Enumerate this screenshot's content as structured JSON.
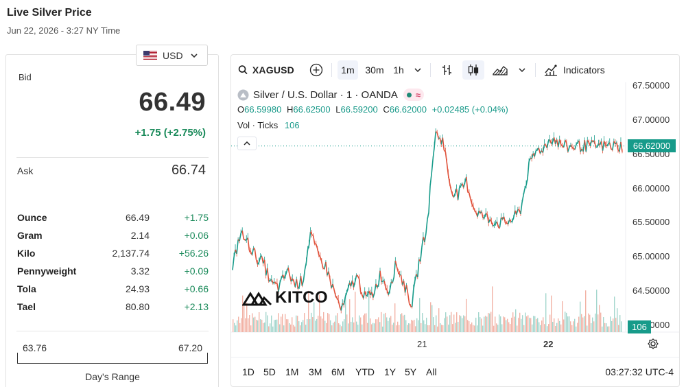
{
  "header": {
    "title": "Live Silver Price",
    "datetime": "Jun 22, 2026 - 3:27 NY Time"
  },
  "currency": {
    "selected": "USD",
    "flag_icon": "us-flag-icon"
  },
  "quote": {
    "bid_label": "Bid",
    "bid_value": "66.49",
    "bid_change": "+1.75 (+2.75%)",
    "ask_label": "Ask",
    "ask_value": "66.74",
    "positive_color": "#1a8a5a"
  },
  "units": [
    {
      "name": "Ounce",
      "price": "66.49",
      "change": "+1.75"
    },
    {
      "name": "Gram",
      "price": "2.14",
      "change": "+0.06"
    },
    {
      "name": "Kilo",
      "price": "2,137.74",
      "change": "+56.26"
    },
    {
      "name": "Pennyweight",
      "price": "3.32",
      "change": "+0.09"
    },
    {
      "name": "Tola",
      "price": "24.93",
      "change": "+0.66"
    },
    {
      "name": "Tael",
      "price": "80.80",
      "change": "+2.13"
    }
  ],
  "days_range": {
    "low": "63.76",
    "high": "67.20",
    "caption": "Day's Range"
  },
  "chart": {
    "symbol": "XAGUSD",
    "intervals": [
      "1m",
      "30m",
      "1h"
    ],
    "active_interval": "1m",
    "indicators_label": "Indicators",
    "legend": {
      "title": "Silver / U.S. Dollar · 1 · OANDA",
      "o_label": "O",
      "o_value": "66.59980",
      "h_label": "H",
      "h_value": "66.62500",
      "l_label": "L",
      "l_value": "66.59200",
      "c_label": "C",
      "c_value": "66.62000",
      "change": "+0.02485 (+0.04%)",
      "vol_label": "Vol · Ticks",
      "vol_value": "106"
    },
    "last_price_tag": "66.62000",
    "volume_tag": "106",
    "watermark": "KITCO",
    "ranges": [
      "1D",
      "5D",
      "1M",
      "3M",
      "6M",
      "YTD",
      "1Y",
      "5Y",
      "All"
    ],
    "clock": "03:27:32 UTC-4",
    "accent_color": "#179b8a",
    "down_color": "#e0533c"
  },
  "chart_data": {
    "type": "line",
    "title": "Silver / U.S. Dollar · 1 · OANDA",
    "xlabel": "",
    "ylabel": "",
    "x_tick_labels": [
      "21",
      "22"
    ],
    "y_tick_labels": [
      "67.50000",
      "67.00000",
      "66.50000",
      "66.00000",
      "65.50000",
      "65.00000",
      "64.50000",
      "64.00000"
    ],
    "ylim": [
      63.9,
      67.55
    ],
    "x": [
      0,
      2,
      4,
      6,
      8,
      10,
      12,
      14,
      16,
      18,
      20,
      22,
      24,
      26,
      28,
      30,
      32,
      34,
      36,
      38,
      40,
      42,
      44,
      46,
      48,
      50,
      52,
      54,
      56,
      58,
      60,
      62,
      64,
      66,
      68,
      70,
      72,
      74,
      76,
      78,
      80,
      82,
      84,
      86,
      88,
      90,
      92,
      94,
      96,
      98,
      100
    ],
    "series": [
      {
        "values": [
          64.85,
          65.35,
          65.2,
          65.0,
          64.9,
          64.6,
          64.55,
          64.8,
          64.6,
          64.65,
          65.35,
          65.0,
          64.85,
          64.5,
          64.2,
          64.55,
          64.7,
          64.4,
          64.45,
          64.75,
          64.5,
          64.9,
          64.6,
          64.3,
          64.95,
          65.5,
          66.8,
          66.7,
          66.0,
          65.9,
          66.1,
          65.7,
          65.6,
          65.55,
          65.5,
          65.5,
          65.55,
          65.7,
          66.3,
          66.55,
          66.6,
          66.75,
          66.65,
          66.6,
          66.62,
          66.62,
          66.62,
          66.62,
          66.62,
          66.62,
          66.62
        ]
      }
    ],
    "last_value": 66.62,
    "grid": false,
    "legend": "top-left"
  }
}
